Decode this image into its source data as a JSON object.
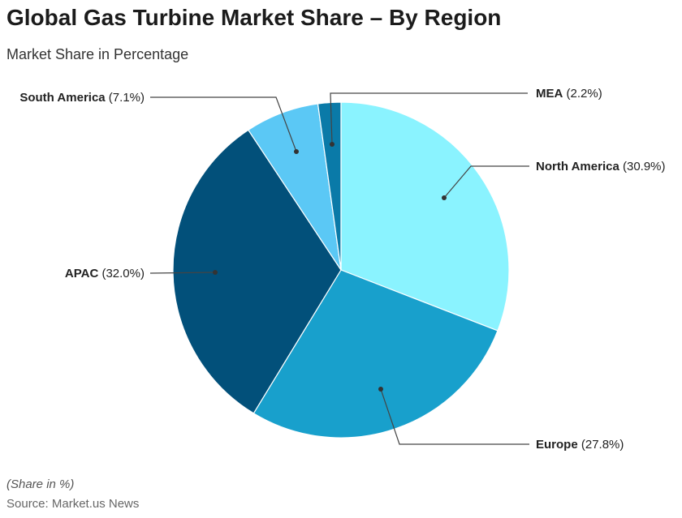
{
  "chart_data": {
    "type": "pie",
    "title": "Global Gas Turbine Market Share – By Region",
    "subtitle": "Market Share in Percentage",
    "categories": [
      "North America",
      "Europe",
      "APAC",
      "South America",
      "MEA"
    ],
    "values": [
      30.9,
      27.8,
      32.0,
      7.1,
      2.2
    ],
    "labels": [
      "(30.9%)",
      "(27.8%)",
      "(32.0%)",
      "(7.1%)",
      "(2.2%)"
    ],
    "colors": [
      "#8af3ff",
      "#18a0cc",
      "#02507a",
      "#5bc8f5",
      "#0a7aa8"
    ],
    "start": "top, clockwise"
  },
  "footer": {
    "note": "(Share in %)",
    "source": "Source: Market.us News"
  }
}
